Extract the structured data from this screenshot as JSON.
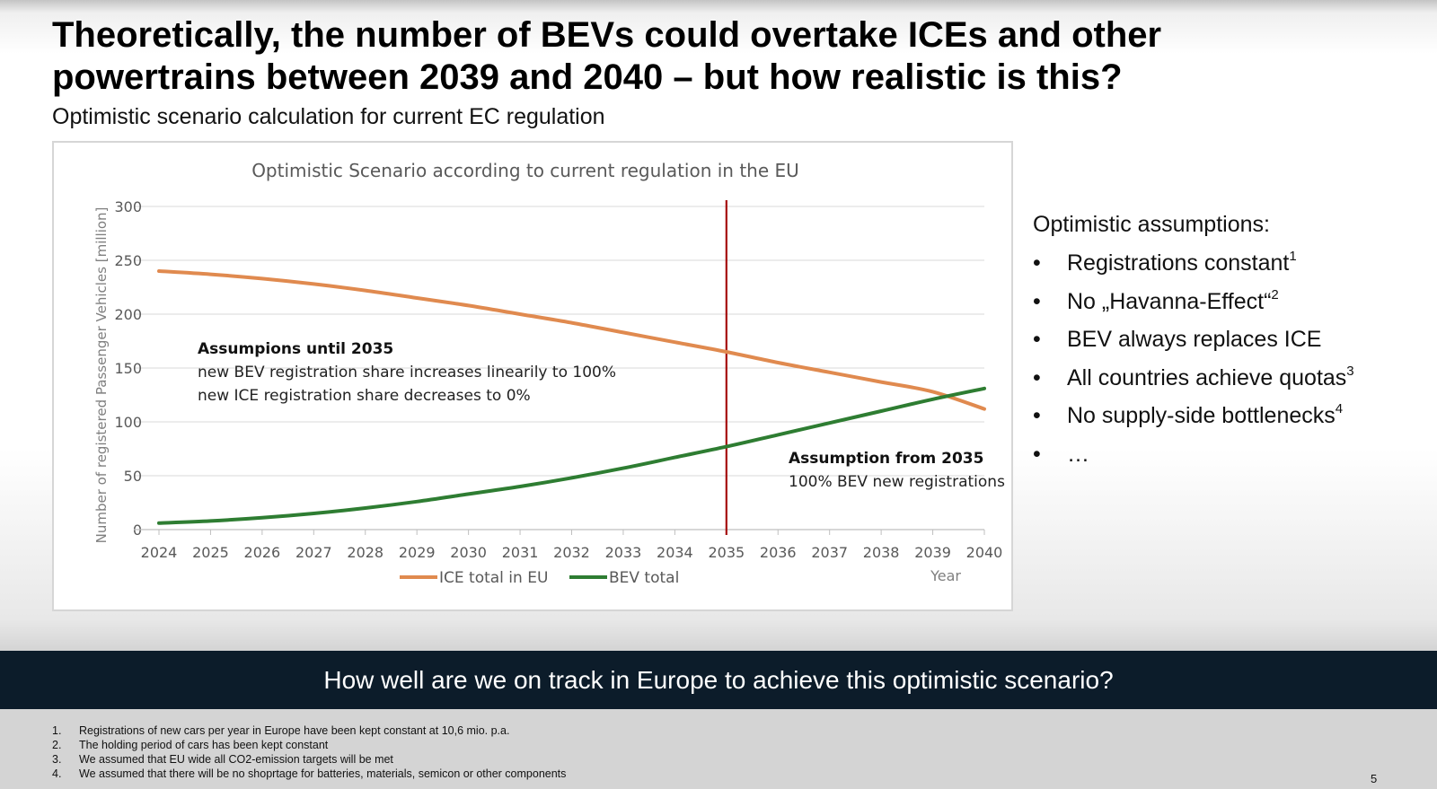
{
  "title": {
    "line1": "Theoretically, the number of BEVs could overtake ICEs and other",
    "line2": "powertrains between 2039 and 2040 – but how realistic is this?"
  },
  "subtitle": "Optimistic scenario calculation for current EC regulation",
  "chart_data": {
    "type": "line",
    "title": "Optimistic Scenario according to current regulation in the EU",
    "xlabel": "Year",
    "ylabel": "Number of registered Passenger Vehicles [million]",
    "x": [
      2024,
      2025,
      2026,
      2027,
      2028,
      2029,
      2030,
      2031,
      2032,
      2033,
      2034,
      2035,
      2036,
      2037,
      2038,
      2039,
      2040
    ],
    "ylim": [
      0,
      300
    ],
    "yticks": [
      0,
      50,
      100,
      150,
      200,
      250,
      300
    ],
    "grid": true,
    "legend_position": "bottom",
    "series": [
      {
        "name": "ICE total in EU",
        "color": "#e08a4f",
        "values": [
          240,
          237,
          233,
          228,
          222,
          215,
          208,
          200,
          192,
          183,
          174,
          165,
          155,
          146,
          137,
          128,
          112
        ]
      },
      {
        "name": "BEV total",
        "color": "#2e7d32",
        "values": [
          6,
          8,
          11,
          15,
          20,
          26,
          33,
          40,
          48,
          57,
          67,
          77,
          88,
          99,
          110,
          121,
          131
        ]
      }
    ],
    "vline": {
      "x": 2035,
      "color": "#a50e0e"
    },
    "annotations": [
      {
        "id": "until",
        "heading": "Assumpions until 2035",
        "lines": [
          "new BEV registration share increases linearily to 100%",
          "new ICE registration share decreases to 0%"
        ]
      },
      {
        "id": "from",
        "heading": "Assumption from 2035",
        "lines": [
          "100% BEV new registrations"
        ]
      }
    ]
  },
  "assumptions": {
    "heading": "Optimistic assumptions:",
    "items": [
      {
        "text": "Registrations constant",
        "sup": "1"
      },
      {
        "text": "No „Havanna-Effect“",
        "sup": "2"
      },
      {
        "text": "BEV always replaces ICE",
        "sup": ""
      },
      {
        "text": "All countries achieve quotas",
        "sup": "3"
      },
      {
        "text": "No supply-side bottlenecks",
        "sup": "4"
      },
      {
        "text": "…",
        "sup": ""
      }
    ]
  },
  "banner": "How well are we on track in Europe to achieve this optimistic scenario?",
  "footnotes": [
    {
      "num": "1.",
      "text": "Registrations of new cars per year in Europe have been kept constant at 10,6 mio. p.a."
    },
    {
      "num": "2.",
      "text": "The holding period of cars has been kept constant"
    },
    {
      "num": "3.",
      "text": "We assumed that EU wide all CO2-emission targets will be met"
    },
    {
      "num": "4.",
      "text": "We assumed that there will be no shoprtage for batteries, materials, semicon or other components"
    }
  ],
  "page_number": "5"
}
